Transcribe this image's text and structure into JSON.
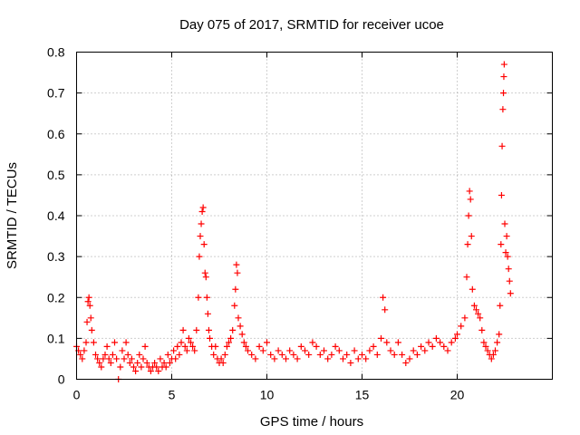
{
  "chart_data": {
    "type": "scatter",
    "title": "Day 075 of 2017, SRMTID for receiver ucoe",
    "xlabel": "GPS time / hours",
    "ylabel": "SRMTID / TECUs",
    "xlim": [
      0,
      25
    ],
    "ylim": [
      0,
      0.8
    ],
    "xticks": [
      0,
      5,
      10,
      15,
      20
    ],
    "xtick_labels": [
      "0",
      "5",
      "10",
      "15",
      "20"
    ],
    "yticks": [
      0,
      0.1,
      0.2,
      0.3,
      0.4,
      0.5,
      0.6,
      0.7,
      0.8
    ],
    "ytick_labels": [
      "0",
      "0.1",
      "0.2",
      "0.3",
      "0.4",
      "0.5",
      "0.6",
      "0.7",
      "0.8"
    ],
    "grid": true,
    "marker": "+",
    "color": "#ff0000",
    "series": [
      {
        "name": "SRMTID",
        "points": [
          [
            0.0,
            0.08
          ],
          [
            0.1,
            0.07
          ],
          [
            0.2,
            0.06
          ],
          [
            0.3,
            0.05
          ],
          [
            0.4,
            0.07
          ],
          [
            0.5,
            0.09
          ],
          [
            0.55,
            0.14
          ],
          [
            0.6,
            0.19
          ],
          [
            0.65,
            0.2
          ],
          [
            0.7,
            0.18
          ],
          [
            0.75,
            0.15
          ],
          [
            0.8,
            0.12
          ],
          [
            0.9,
            0.09
          ],
          [
            1.0,
            0.06
          ],
          [
            1.1,
            0.05
          ],
          [
            1.2,
            0.04
          ],
          [
            1.3,
            0.03
          ],
          [
            1.4,
            0.05
          ],
          [
            1.5,
            0.06
          ],
          [
            1.6,
            0.08
          ],
          [
            1.7,
            0.05
          ],
          [
            1.8,
            0.04
          ],
          [
            1.9,
            0.06
          ],
          [
            2.0,
            0.09
          ],
          [
            2.1,
            0.05
          ],
          [
            2.2,
            0.0
          ],
          [
            2.3,
            0.03
          ],
          [
            2.4,
            0.07
          ],
          [
            2.5,
            0.05
          ],
          [
            2.6,
            0.09
          ],
          [
            2.7,
            0.06
          ],
          [
            2.8,
            0.04
          ],
          [
            2.9,
            0.05
          ],
          [
            3.0,
            0.03
          ],
          [
            3.1,
            0.02
          ],
          [
            3.2,
            0.04
          ],
          [
            3.3,
            0.06
          ],
          [
            3.4,
            0.03
          ],
          [
            3.5,
            0.05
          ],
          [
            3.6,
            0.08
          ],
          [
            3.7,
            0.04
          ],
          [
            3.8,
            0.03
          ],
          [
            3.9,
            0.02
          ],
          [
            4.0,
            0.03
          ],
          [
            4.1,
            0.04
          ],
          [
            4.2,
            0.03
          ],
          [
            4.3,
            0.02
          ],
          [
            4.4,
            0.05
          ],
          [
            4.5,
            0.03
          ],
          [
            4.6,
            0.04
          ],
          [
            4.7,
            0.03
          ],
          [
            4.8,
            0.06
          ],
          [
            4.9,
            0.04
          ],
          [
            5.0,
            0.05
          ],
          [
            5.1,
            0.07
          ],
          [
            5.2,
            0.05
          ],
          [
            5.3,
            0.08
          ],
          [
            5.4,
            0.06
          ],
          [
            5.5,
            0.09
          ],
          [
            5.6,
            0.12
          ],
          [
            5.7,
            0.08
          ],
          [
            5.8,
            0.07
          ],
          [
            5.9,
            0.1
          ],
          [
            6.0,
            0.09
          ],
          [
            6.1,
            0.08
          ],
          [
            6.2,
            0.07
          ],
          [
            6.3,
            0.12
          ],
          [
            6.4,
            0.2
          ],
          [
            6.45,
            0.3
          ],
          [
            6.5,
            0.35
          ],
          [
            6.55,
            0.38
          ],
          [
            6.6,
            0.41
          ],
          [
            6.65,
            0.42
          ],
          [
            6.7,
            0.33
          ],
          [
            6.75,
            0.26
          ],
          [
            6.8,
            0.25
          ],
          [
            6.85,
            0.2
          ],
          [
            6.9,
            0.16
          ],
          [
            6.95,
            0.12
          ],
          [
            7.0,
            0.1
          ],
          [
            7.1,
            0.08
          ],
          [
            7.2,
            0.06
          ],
          [
            7.3,
            0.08
          ],
          [
            7.4,
            0.05
          ],
          [
            7.5,
            0.04
          ],
          [
            7.6,
            0.05
          ],
          [
            7.7,
            0.04
          ],
          [
            7.8,
            0.06
          ],
          [
            7.9,
            0.08
          ],
          [
            8.0,
            0.09
          ],
          [
            8.1,
            0.1
          ],
          [
            8.2,
            0.12
          ],
          [
            8.3,
            0.18
          ],
          [
            8.35,
            0.22
          ],
          [
            8.4,
            0.28
          ],
          [
            8.45,
            0.26
          ],
          [
            8.5,
            0.15
          ],
          [
            8.6,
            0.13
          ],
          [
            8.7,
            0.11
          ],
          [
            8.8,
            0.09
          ],
          [
            8.9,
            0.08
          ],
          [
            9.0,
            0.07
          ],
          [
            9.2,
            0.06
          ],
          [
            9.4,
            0.05
          ],
          [
            9.6,
            0.08
          ],
          [
            9.8,
            0.07
          ],
          [
            10.0,
            0.09
          ],
          [
            10.2,
            0.06
          ],
          [
            10.4,
            0.05
          ],
          [
            10.6,
            0.07
          ],
          [
            10.8,
            0.06
          ],
          [
            11.0,
            0.05
          ],
          [
            11.2,
            0.07
          ],
          [
            11.4,
            0.06
          ],
          [
            11.6,
            0.05
          ],
          [
            11.8,
            0.08
          ],
          [
            12.0,
            0.07
          ],
          [
            12.2,
            0.06
          ],
          [
            12.4,
            0.09
          ],
          [
            12.6,
            0.08
          ],
          [
            12.8,
            0.06
          ],
          [
            13.0,
            0.07
          ],
          [
            13.2,
            0.05
          ],
          [
            13.4,
            0.06
          ],
          [
            13.6,
            0.08
          ],
          [
            13.8,
            0.07
          ],
          [
            14.0,
            0.05
          ],
          [
            14.2,
            0.06
          ],
          [
            14.4,
            0.04
          ],
          [
            14.6,
            0.07
          ],
          [
            14.8,
            0.05
          ],
          [
            15.0,
            0.06
          ],
          [
            15.2,
            0.05
          ],
          [
            15.4,
            0.07
          ],
          [
            15.6,
            0.08
          ],
          [
            15.8,
            0.06
          ],
          [
            16.0,
            0.1
          ],
          [
            16.1,
            0.2
          ],
          [
            16.2,
            0.17
          ],
          [
            16.3,
            0.09
          ],
          [
            16.5,
            0.07
          ],
          [
            16.7,
            0.06
          ],
          [
            16.9,
            0.09
          ],
          [
            17.1,
            0.06
          ],
          [
            17.3,
            0.04
          ],
          [
            17.5,
            0.05
          ],
          [
            17.7,
            0.07
          ],
          [
            17.9,
            0.06
          ],
          [
            18.1,
            0.08
          ],
          [
            18.3,
            0.07
          ],
          [
            18.5,
            0.09
          ],
          [
            18.7,
            0.08
          ],
          [
            18.9,
            0.1
          ],
          [
            19.1,
            0.09
          ],
          [
            19.3,
            0.08
          ],
          [
            19.5,
            0.07
          ],
          [
            19.7,
            0.09
          ],
          [
            19.9,
            0.1
          ],
          [
            20.0,
            0.11
          ],
          [
            20.2,
            0.13
          ],
          [
            20.4,
            0.15
          ],
          [
            20.5,
            0.25
          ],
          [
            20.55,
            0.33
          ],
          [
            20.6,
            0.4
          ],
          [
            20.65,
            0.46
          ],
          [
            20.7,
            0.44
          ],
          [
            20.75,
            0.35
          ],
          [
            20.8,
            0.22
          ],
          [
            20.9,
            0.18
          ],
          [
            21.0,
            0.17
          ],
          [
            21.1,
            0.16
          ],
          [
            21.2,
            0.15
          ],
          [
            21.3,
            0.12
          ],
          [
            21.4,
            0.09
          ],
          [
            21.5,
            0.08
          ],
          [
            21.6,
            0.07
          ],
          [
            21.7,
            0.06
          ],
          [
            21.8,
            0.05
          ],
          [
            21.9,
            0.06
          ],
          [
            22.0,
            0.07
          ],
          [
            22.1,
            0.09
          ],
          [
            22.2,
            0.11
          ],
          [
            22.25,
            0.18
          ],
          [
            22.3,
            0.33
          ],
          [
            22.33,
            0.45
          ],
          [
            22.36,
            0.57
          ],
          [
            22.4,
            0.66
          ],
          [
            22.43,
            0.7
          ],
          [
            22.45,
            0.74
          ],
          [
            22.47,
            0.77
          ],
          [
            22.5,
            0.38
          ],
          [
            22.55,
            0.31
          ],
          [
            22.6,
            0.35
          ],
          [
            22.65,
            0.3
          ],
          [
            22.7,
            0.27
          ],
          [
            22.75,
            0.24
          ],
          [
            22.8,
            0.21
          ]
        ]
      }
    ]
  }
}
